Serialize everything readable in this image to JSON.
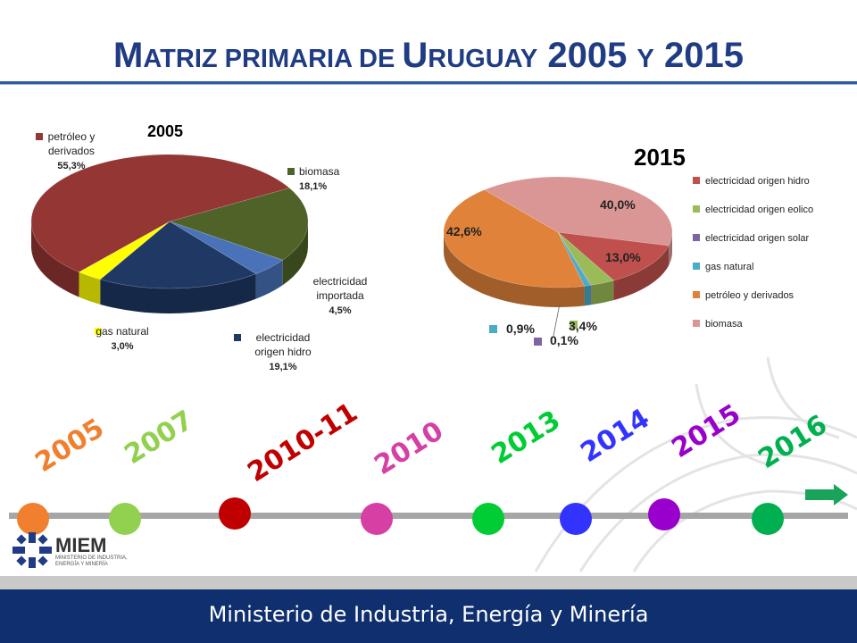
{
  "slide": {
    "title_parts": [
      {
        "text": "M",
        "cls": "big"
      },
      {
        "text": "ATRIZ PRIMARIA DE ",
        "cls": "sc"
      },
      {
        "text": "U",
        "cls": "big"
      },
      {
        "text": "RUGUAY",
        "cls": "sc"
      },
      {
        "text": "  2005 ",
        "cls": "big"
      },
      {
        "text": "Y",
        "cls": "sc"
      },
      {
        "text": " 2015",
        "cls": "big"
      }
    ],
    "footer": "Ministerio de Industria, Energía y Minería",
    "logo": {
      "name": "MIEM",
      "subtitle": "MINISTERIO DE INDUSTRIA, ENERGÍA Y MINERÍA"
    },
    "colors": {
      "title": "#1f3c84",
      "footer_bg": "#0f2f6e",
      "arrow": "#1aa35b"
    }
  },
  "timeline": [
    {
      "label": "2005",
      "color": "#f07f2f"
    },
    {
      "label": "2007",
      "color": "#92d050"
    },
    {
      "label": "2010-11",
      "color": "#c00000"
    },
    {
      "label": "2010",
      "color": "#d63fa3"
    },
    {
      "label": "2013",
      "color": "#00cc33"
    },
    {
      "label": "2014",
      "color": "#3333ff"
    },
    {
      "label": "2015",
      "color": "#9900cc"
    },
    {
      "label": "2016",
      "color": "#00b050"
    }
  ],
  "chart_data": [
    {
      "type": "pie",
      "title": "2005",
      "slices": [
        {
          "label": "biomasa",
          "value": 18.1,
          "display": "18,1%",
          "color": "#4f6228"
        },
        {
          "label": "electricidad importada",
          "value": 4.5,
          "display": "4,5%",
          "color": "#4a72b8"
        },
        {
          "label": "electricidad origen hidro",
          "value": 19.1,
          "display": "19,1%",
          "color": "#1f3864"
        },
        {
          "label": "gas natural",
          "value": 3.0,
          "display": "3,0%",
          "color": "#ffff00"
        },
        {
          "label": "petróleo y derivados",
          "value": 55.3,
          "display": "55,3%",
          "color": "#943634"
        }
      ]
    },
    {
      "type": "pie",
      "title": "2015",
      "slices": [
        {
          "label": "electricidad origen hidro",
          "value": 13.0,
          "display": "13,0%",
          "color": "#c0504d"
        },
        {
          "label": "electricidad origen eolico",
          "value": 3.4,
          "display": "3,4%",
          "color": "#9bbb59"
        },
        {
          "label": "electricidad origen solar",
          "value": 0.1,
          "display": "0,1%",
          "color": "#8064a2"
        },
        {
          "label": "gas natural",
          "value": 0.9,
          "display": "0,9%",
          "color": "#4bacc6"
        },
        {
          "label": "petróleo y derivados",
          "value": 42.6,
          "display": "42,6%",
          "color": "#e0823a"
        },
        {
          "label": "biomasa",
          "value": 40.0,
          "display": "40,0%",
          "color": "#d99694"
        }
      ],
      "legend_position": "right"
    }
  ]
}
